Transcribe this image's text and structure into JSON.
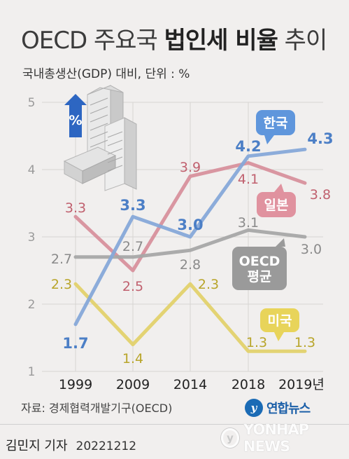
{
  "header": {
    "title_plain_1": "OECD 주요국 ",
    "title_bold": "법인세 비율",
    "title_plain_2": " 추이",
    "subtitle": "국내총생산(GDP) 대비, 단위 : %"
  },
  "chart_data": {
    "type": "line",
    "categories": [
      "1999",
      "2009",
      "2014",
      "2018",
      "2019년"
    ],
    "ylim": [
      1,
      5
    ],
    "yticks": [
      "1",
      "2",
      "3",
      "4",
      "5"
    ],
    "grid": true,
    "series": [
      {
        "name": "한국",
        "values": [
          1.7,
          3.3,
          3.0,
          4.2,
          4.3
        ],
        "labels": [
          "1.7",
          "3.3",
          "3.0",
          "4.2",
          "4.3"
        ],
        "color": "#86a8d8",
        "label_color": "#4c7fc6",
        "bold_labels": true,
        "bubble_color": "#5f96dc"
      },
      {
        "name": "일본",
        "values": [
          3.3,
          2.5,
          3.9,
          4.1,
          3.8
        ],
        "labels": [
          "3.3",
          "2.5",
          "3.9",
          "4.1",
          "3.8"
        ],
        "color": "#d7909c",
        "label_color": "#c0606e",
        "bold_labels": false,
        "bubble_color": "#e0929f"
      },
      {
        "name": "OECD 평균",
        "name_lines": [
          "OECD",
          "평균"
        ],
        "values": [
          2.7,
          2.7,
          2.8,
          3.1,
          3.0
        ],
        "labels": [
          "2.7",
          "2.7",
          "2.8",
          "3.1",
          "3.0"
        ],
        "color": "#a7a7a7",
        "label_color": "#8a8a8a",
        "bold_labels": false,
        "bubble_color": "#9a9a9a"
      },
      {
        "name": "미국",
        "values": [
          2.3,
          1.4,
          2.3,
          1.3,
          1.3
        ],
        "labels": [
          "2.3",
          "1.4",
          "2.3",
          "1.3",
          "1.3"
        ],
        "color": "#e2d16c",
        "label_color": "#b8a52a",
        "bold_labels": false,
        "bubble_color": "#e8d45a"
      }
    ],
    "illustration": {
      "icon": "building-icon",
      "badge_text": "%"
    }
  },
  "footer": {
    "source": "자료: 경제협력개발기구(OECD)",
    "logo_text": "연합뉴스",
    "reporter": "김민지 기자",
    "date": "20221212",
    "watermark": "YONHAP NEWS"
  }
}
